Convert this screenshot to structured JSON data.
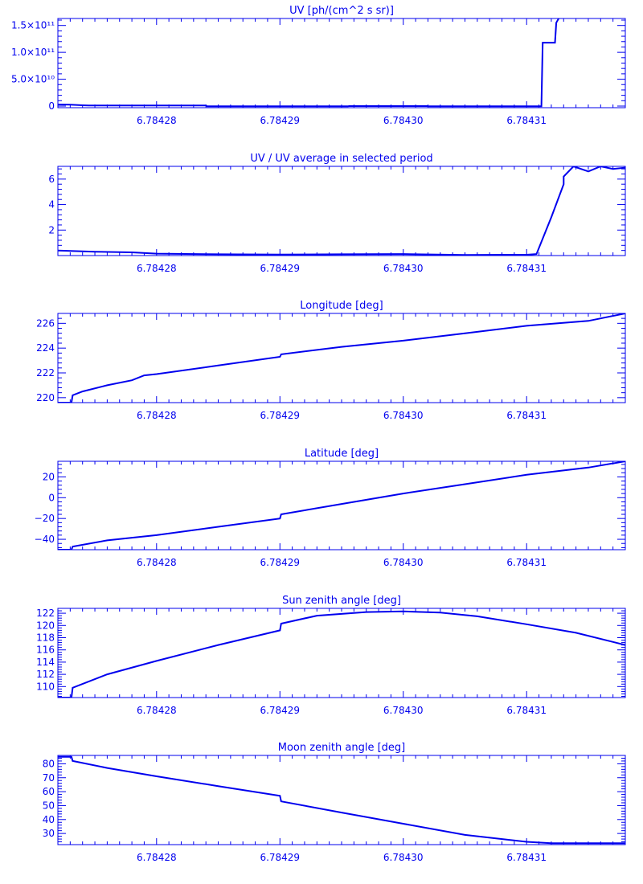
{
  "style": {
    "color": "#0000ee",
    "background": "#ffffff"
  },
  "x_tick_labels": [
    "6.78428",
    "6.78429",
    "6.78430",
    "6.78431"
  ],
  "chart_data": [
    {
      "type": "line",
      "title": "UV [ph/(cm^2 s sr)]",
      "xlabel": "",
      "ylabel": "",
      "xlim": [
        6.784272,
        6.784318
      ],
      "ylim": [
        -3000000000,
        163000000000
      ],
      "x_ticks": [
        6.78428,
        6.78429,
        6.7843,
        6.78431
      ],
      "y_ticks": [
        0,
        50000000000,
        100000000000,
        150000000000
      ],
      "y_tick_labels": [
        "0",
        "5.0×10¹⁰",
        "1.0×10¹¹",
        "1.5×10¹¹"
      ],
      "series": [
        {
          "x": [
            6.784272,
            6.784273,
            6.784274,
            6.7842745,
            6.78428,
            6.784284,
            6.7842841,
            6.78429,
            6.7842955,
            6.7842956,
            6.7843,
            6.784302,
            6.7843021,
            6.78431,
            6.7843112,
            6.7843113,
            6.7843123,
            6.7843124,
            6.7843126
          ],
          "y": [
            3000000000,
            2500000000,
            1500000000,
            1000000000,
            1000000000,
            1000000000,
            -500000000,
            -500000000,
            -500000000,
            0,
            0,
            0,
            -500000000,
            -500000000,
            -500000000,
            118000000000,
            118000000000,
            155000000000,
            163000000000
          ]
        }
      ]
    },
    {
      "type": "line",
      "title": "UV / UV average in selected period",
      "xlabel": "",
      "ylabel": "",
      "xlim": [
        6.784272,
        6.784318
      ],
      "ylim": [
        0,
        7
      ],
      "x_ticks": [
        6.78428,
        6.78429,
        6.7843,
        6.78431
      ],
      "y_ticks": [
        2,
        4,
        6
      ],
      "y_tick_labels": [
        "2",
        "4",
        "6"
      ],
      "series": [
        {
          "x": [
            6.784272,
            6.784275,
            6.784278,
            6.78428,
            6.784285,
            6.78429,
            6.784295,
            6.7843,
            6.784305,
            6.78431,
            6.7843108,
            6.784312,
            6.784313,
            6.784313,
            6.7843138,
            6.784315,
            6.784316,
            6.784317,
            6.784318
          ],
          "y": [
            0.4,
            0.3,
            0.25,
            0.15,
            0.1,
            0.08,
            0.1,
            0.12,
            0.05,
            0.06,
            0.12,
            3,
            5.6,
            6.2,
            7,
            6.6,
            7,
            6.8,
            6.9
          ]
        }
      ]
    },
    {
      "type": "line",
      "title": "Longitude [deg]",
      "xlabel": "",
      "ylabel": "",
      "xlim": [
        6.784272,
        6.784318
      ],
      "ylim": [
        219.6,
        226.8
      ],
      "x_ticks": [
        6.78428,
        6.78429,
        6.7843,
        6.78431
      ],
      "y_ticks": [
        220,
        222,
        224,
        226
      ],
      "y_tick_labels": [
        "220",
        "222",
        "224",
        "226"
      ],
      "series": [
        {
          "x": [
            6.784272,
            6.7842731,
            6.7842732,
            6.784274,
            6.784276,
            6.784278,
            6.784279,
            6.78428,
            6.784285,
            6.78429,
            6.7842901,
            6.784295,
            6.7843,
            6.784305,
            6.78431,
            6.784315,
            6.784318
          ],
          "y": [
            219.6,
            219.6,
            220.2,
            220.5,
            221,
            221.4,
            221.8,
            221.9,
            222.6,
            223.3,
            223.5,
            224.1,
            224.6,
            225.2,
            225.8,
            226.2,
            226.8
          ]
        }
      ]
    },
    {
      "type": "line",
      "title": "Latitude [deg]",
      "xlabel": "",
      "ylabel": "",
      "xlim": [
        6.784272,
        6.784318
      ],
      "ylim": [
        -50,
        35
      ],
      "x_ticks": [
        6.78428,
        6.78429,
        6.7843,
        6.78431
      ],
      "y_ticks": [
        -40,
        -20,
        0,
        20
      ],
      "y_tick_labels": [
        "−40",
        "−20",
        "0",
        "20"
      ],
      "series": [
        {
          "x": [
            6.784272,
            6.7842731,
            6.7842732,
            6.784276,
            6.78428,
            6.784285,
            6.78429,
            6.7842901,
            6.784295,
            6.7843,
            6.784305,
            6.78431,
            6.784315,
            6.784318
          ],
          "y": [
            -50,
            -50,
            -47,
            -41,
            -36,
            -28,
            -20,
            -16,
            -6,
            4,
            13,
            22,
            29,
            35
          ]
        }
      ]
    },
    {
      "type": "line",
      "title": "Sun zenith angle [deg]",
      "xlabel": "",
      "ylabel": "",
      "xlim": [
        6.784272,
        6.784318
      ],
      "ylim": [
        108.2,
        122.8
      ],
      "x_ticks": [
        6.78428,
        6.78429,
        6.7843,
        6.78431
      ],
      "y_ticks": [
        110,
        112,
        114,
        116,
        118,
        120,
        122
      ],
      "y_tick_labels": [
        "110",
        "112",
        "114",
        "116",
        "118",
        "120",
        "122"
      ],
      "series": [
        {
          "x": [
            6.784272,
            6.7842731,
            6.7842732,
            6.784276,
            6.78428,
            6.784285,
            6.78429,
            6.7842901,
            6.784293,
            6.784297,
            6.7843,
            6.784303,
            6.784306,
            6.78431,
            6.784314,
            6.784318
          ],
          "y": [
            108.2,
            108.2,
            109.8,
            112,
            114.2,
            116.8,
            119.2,
            120.3,
            121.6,
            122.2,
            122.3,
            122.1,
            121.5,
            120.2,
            118.8,
            116.8
          ]
        }
      ]
    },
    {
      "type": "line",
      "title": "Moon zenith angle [deg]",
      "xlabel": "",
      "ylabel": "",
      "xlim": [
        6.784272,
        6.784318
      ],
      "ylim": [
        22,
        86
      ],
      "x_ticks": [
        6.78428,
        6.78429,
        6.7843,
        6.78431
      ],
      "y_ticks": [
        30,
        40,
        50,
        60,
        70,
        80
      ],
      "y_tick_labels": [
        "30",
        "40",
        "50",
        "60",
        "70",
        "80"
      ],
      "series": [
        {
          "x": [
            6.784272,
            6.7842731,
            6.7842732,
            6.784276,
            6.78428,
            6.784285,
            6.78429,
            6.7842901,
            6.784295,
            6.7843,
            6.784305,
            6.78431,
            6.784312,
            6.784318
          ],
          "y": [
            85,
            85,
            82,
            77,
            71,
            64,
            57,
            53,
            45,
            37,
            29,
            24,
            23,
            23
          ]
        }
      ]
    }
  ]
}
